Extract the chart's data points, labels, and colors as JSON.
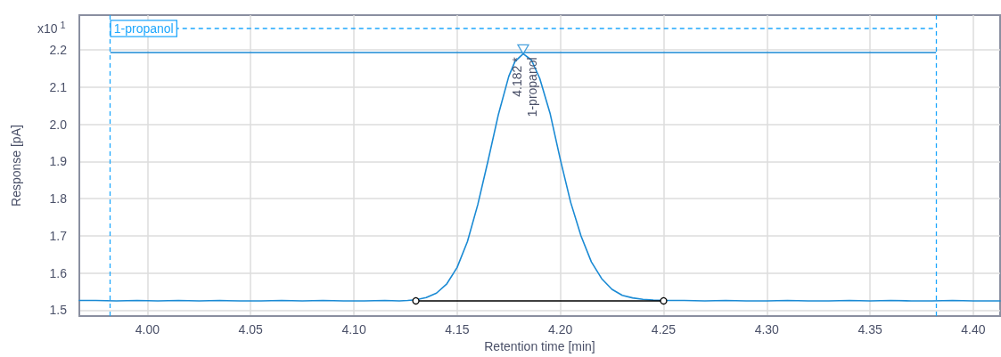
{
  "chart_data": {
    "type": "line",
    "xlabel": "Retention time [min]",
    "ylabel": "Response [pA]",
    "x": [
      3.967,
      3.975,
      3.985,
      3.995,
      4.005,
      4.015,
      4.025,
      4.035,
      4.045,
      4.055,
      4.065,
      4.075,
      4.085,
      4.095,
      4.105,
      4.115,
      4.122,
      4.126,
      4.13,
      4.135,
      4.14,
      4.145,
      4.15,
      4.155,
      4.16,
      4.165,
      4.17,
      4.175,
      4.178,
      4.182,
      4.186,
      4.19,
      4.195,
      4.2,
      4.205,
      4.21,
      4.215,
      4.22,
      4.225,
      4.23,
      4.235,
      4.24,
      4.245,
      4.25,
      4.26,
      4.27,
      4.28,
      4.29,
      4.3,
      4.31,
      4.32,
      4.33,
      4.34,
      4.35,
      4.36,
      4.37,
      4.38,
      4.39,
      4.4,
      4.413
    ],
    "series": [
      {
        "color": "#1a8ad4",
        "values": [
          1.526,
          1.526,
          1.525,
          1.526,
          1.525,
          1.526,
          1.525,
          1.526,
          1.525,
          1.525,
          1.526,
          1.525,
          1.526,
          1.525,
          1.525,
          1.526,
          1.525,
          1.526,
          1.528,
          1.534,
          1.546,
          1.571,
          1.615,
          1.685,
          1.784,
          1.903,
          2.027,
          2.129,
          2.169,
          2.19,
          2.173,
          2.124,
          2.03,
          1.905,
          1.79,
          1.7,
          1.63,
          1.585,
          1.556,
          1.54,
          1.533,
          1.529,
          1.527,
          1.526,
          1.526,
          1.525,
          1.526,
          1.525,
          1.525,
          1.526,
          1.525,
          1.525,
          1.526,
          1.525,
          1.526,
          1.525,
          1.525,
          1.526,
          1.525,
          1.525
        ]
      },
      {
        "type": "line",
        "color": "#000000",
        "marker": "circle",
        "x": [
          4.13,
          4.25
        ],
        "values": [
          1.525,
          1.525
        ]
      },
      {
        "type": "scatter",
        "color": "#1a8ad4",
        "marker": "triangle",
        "x": [
          4.182
        ],
        "values": [
          2.202
        ]
      }
    ],
    "xlim": [
      3.967,
      4.413
    ],
    "xticks": [
      {
        "value": 4.0,
        "label": "4.00"
      },
      4.05,
      {
        "value": 4.1,
        "label": "4.10"
      },
      4.15,
      {
        "value": 4.2,
        "label": "4.20"
      },
      4.25,
      {
        "value": 4.3,
        "label": "4.30"
      },
      4.35,
      {
        "value": 4.4,
        "label": "4.40"
      }
    ],
    "ylim": [
      1.484,
      2.294
    ],
    "yticks": [
      1.5,
      1.6,
      1.7,
      1.8,
      1.9,
      {
        "value": 2.0,
        "label": "2.0"
      },
      2.1,
      2.2
    ],
    "ref_lines": [
      {
        "axis": "x",
        "value": 3.982,
        "label": "1-propanol",
        "color": "#1ea7fd",
        "line_style": "dashed"
      },
      {
        "axis": "x",
        "value": 4.382,
        "color": "#1ea7fd",
        "line_style": "dashed"
      },
      {
        "axis": "y",
        "value": 2.258,
        "color": "#1ea7fd",
        "line_style": "dashed"
      },
      {
        "axis": "y",
        "value": 2.195,
        "color": "#1a8ad4",
        "line_style": "solid"
      }
    ],
    "annotations": [
      {
        "text": "4.182 *\n1-propanol",
        "x": 4.182,
        "y": 2.19
      },
      "x10$^{1}$"
    ],
    "grid": true,
    "marker": "none",
    "line_style": "solid"
  }
}
